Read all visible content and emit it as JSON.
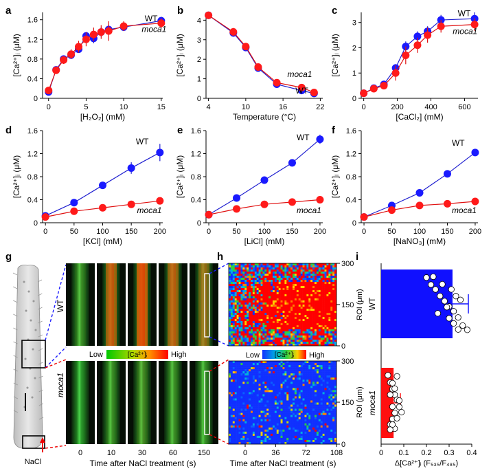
{
  "colors": {
    "wt": "#1a1aff",
    "moca1": "#ff1a1a",
    "line_wt": "#2020d0",
    "line_moca1": "#e01010",
    "bar_wt": "#1010ff",
    "bar_moca1": "#ff1010"
  },
  "chart_data": [
    {
      "panel": "a",
      "type": "scatter",
      "xlabel": "[H₂O₂] (mM)",
      "ylabel": "[Ca²⁺]ᵢ (μM)",
      "xlim": [
        -0.8,
        15.2
      ],
      "ylim": [
        0,
        1.75
      ],
      "xticks": [
        0,
        5,
        10,
        15
      ],
      "yticks": [
        0,
        0.4,
        0.8,
        1.2,
        1.6
      ],
      "ytick_labels": [
        "0",
        "0.4",
        "0.8",
        "1.2",
        "1.6"
      ],
      "annotations": [
        {
          "text": "WT",
          "x": 12.8,
          "y": 1.57
        },
        {
          "text": "moca1",
          "x": 12.4,
          "y": 1.35,
          "italic": true
        }
      ],
      "series": [
        {
          "name": "WT",
          "color": "wt",
          "x": [
            0,
            1,
            2,
            3,
            4,
            5,
            6,
            7,
            8,
            10,
            15
          ],
          "y": [
            0.13,
            0.58,
            0.8,
            0.88,
            1.0,
            1.27,
            1.22,
            1.35,
            1.4,
            1.45,
            1.58
          ],
          "err": [
            0.05,
            0.05,
            0.06,
            0.06,
            0.06,
            0.08,
            0.1,
            0.1,
            0.1,
            0.06,
            0.08
          ]
        },
        {
          "name": "moca1",
          "color": "moca1",
          "x": [
            0,
            1,
            2,
            3,
            4,
            5,
            6,
            7,
            8,
            10,
            15
          ],
          "y": [
            0.16,
            0.57,
            0.78,
            0.9,
            1.05,
            1.2,
            1.3,
            1.35,
            1.37,
            1.47,
            1.53
          ],
          "err": [
            0.05,
            0.05,
            0.08,
            0.1,
            0.12,
            0.14,
            0.14,
            0.14,
            0.2,
            0.1,
            0.1
          ]
        }
      ]
    },
    {
      "panel": "b",
      "type": "scatter",
      "xlabel": "Temperature (°C)",
      "ylabel": "[Ca²⁺]ᵢ (μM)",
      "xlim": [
        3.6,
        22.4
      ],
      "ylim": [
        0,
        4.4
      ],
      "xticks": [
        4,
        10,
        16,
        22
      ],
      "yticks": [
        0,
        1,
        2,
        3,
        4
      ],
      "ytick_labels": [
        "0",
        "1",
        "2",
        "3",
        "4"
      ],
      "annotations": [
        {
          "text": "moca1",
          "x": 16.7,
          "y": 1.1,
          "italic": true
        },
        {
          "text": "WT",
          "x": 18.0,
          "y": 0.25
        }
      ],
      "series": [
        {
          "name": "WT",
          "color": "wt",
          "x": [
            4,
            8,
            10,
            12,
            15,
            19,
            21
          ],
          "y": [
            4.25,
            3.35,
            2.6,
            1.55,
            0.72,
            0.4,
            0.25
          ],
          "err": [
            0.15,
            0.2,
            0.15,
            0.12,
            0.1,
            0.08,
            0.08
          ]
        },
        {
          "name": "moca1",
          "color": "moca1",
          "x": [
            4,
            8,
            10,
            12,
            15,
            19,
            21
          ],
          "y": [
            4.25,
            3.4,
            2.65,
            1.6,
            0.8,
            0.55,
            0.3
          ],
          "err": [
            0.15,
            0.2,
            0.15,
            0.12,
            0.1,
            0.08,
            0.08
          ]
        }
      ]
    },
    {
      "panel": "c",
      "type": "scatter",
      "xlabel": "[CaCl₂] (mM)",
      "ylabel": "[Ca²⁺]ᵢ (μM)",
      "xlim": [
        -15,
        680
      ],
      "ylim": [
        0,
        3.4
      ],
      "xticks": [
        0,
        200,
        400,
        600
      ],
      "yticks": [
        0,
        1,
        2,
        3
      ],
      "ytick_labels": [
        "0",
        "1",
        "2",
        "3"
      ],
      "annotations": [
        {
          "text": "WT",
          "x": 560,
          "y": 3.25
        },
        {
          "text": "moca1",
          "x": 530,
          "y": 2.55,
          "italic": true
        }
      ],
      "series": [
        {
          "name": "WT",
          "color": "wt",
          "x": [
            0,
            60,
            120,
            190,
            250,
            320,
            380,
            460,
            660
          ],
          "y": [
            0.2,
            0.4,
            0.55,
            1.2,
            2.05,
            2.45,
            2.65,
            3.1,
            3.15
          ],
          "err": [
            0.05,
            0.08,
            0.1,
            0.15,
            0.2,
            0.2,
            0.2,
            0.2,
            0.25
          ]
        },
        {
          "name": "moca1",
          "color": "moca1",
          "x": [
            0,
            60,
            120,
            190,
            250,
            320,
            380,
            460,
            660
          ],
          "y": [
            0.2,
            0.38,
            0.5,
            1.0,
            1.7,
            2.1,
            2.5,
            2.85,
            2.92
          ],
          "err": [
            0.05,
            0.08,
            0.1,
            0.3,
            0.35,
            0.3,
            0.3,
            0.25,
            0.25
          ]
        }
      ]
    },
    {
      "panel": "d",
      "type": "scatter",
      "xlabel": "[KCl] (mM)",
      "ylabel": "[Ca²⁺]ᵢ (μM)",
      "xlim": [
        -5,
        205
      ],
      "ylim": [
        0,
        1.6
      ],
      "xticks": [
        0,
        50,
        100,
        150,
        200
      ],
      "yticks": [
        0,
        0.4,
        0.8,
        1.2,
        1.6
      ],
      "ytick_labels": [
        "0",
        "0.4",
        "0.8",
        "1.2",
        "1.6"
      ],
      "annotations": [
        {
          "text": "WT",
          "x": 158,
          "y": 1.36
        },
        {
          "text": "moca1",
          "x": 160,
          "y": 0.17,
          "italic": true
        }
      ],
      "series": [
        {
          "name": "WT",
          "color": "wt",
          "x": [
            0,
            50,
            100,
            150,
            200
          ],
          "y": [
            0.12,
            0.35,
            0.65,
            0.95,
            1.22
          ],
          "err": [
            0.03,
            0.04,
            0.04,
            0.1,
            0.15
          ]
        },
        {
          "name": "moca1",
          "color": "moca1",
          "x": [
            0,
            50,
            100,
            150,
            200
          ],
          "y": [
            0.1,
            0.2,
            0.26,
            0.32,
            0.38
          ],
          "err": [
            0.03,
            0.03,
            0.03,
            0.04,
            0.06
          ]
        }
      ]
    },
    {
      "panel": "e",
      "type": "scatter",
      "xlabel": "[LiCl] (mM)",
      "ylabel": "[Ca²⁺]ᵢ (μM)",
      "xlim": [
        -5,
        205
      ],
      "ylim": [
        0,
        1.6
      ],
      "xticks": [
        0,
        50,
        100,
        150,
        200
      ],
      "yticks": [
        0,
        0.4,
        0.8,
        1.2,
        1.6
      ],
      "ytick_labels": [
        "0",
        "0.4",
        "0.8",
        "1.2",
        "1.6"
      ],
      "annotations": [
        {
          "text": "WT",
          "x": 158,
          "y": 1.43
        },
        {
          "text": "moca1",
          "x": 158,
          "y": 0.17,
          "italic": true
        }
      ],
      "series": [
        {
          "name": "WT",
          "color": "wt",
          "x": [
            0,
            50,
            100,
            150,
            200
          ],
          "y": [
            0.14,
            0.43,
            0.74,
            1.04,
            1.45
          ],
          "err": [
            0.03,
            0.04,
            0.05,
            0.06,
            0.08
          ]
        },
        {
          "name": "moca1",
          "color": "moca1",
          "x": [
            0,
            50,
            100,
            150,
            200
          ],
          "y": [
            0.14,
            0.24,
            0.32,
            0.36,
            0.4
          ],
          "err": [
            0.03,
            0.03,
            0.03,
            0.04,
            0.04
          ]
        }
      ]
    },
    {
      "panel": "f",
      "type": "scatter",
      "xlabel": "[NaNO₃] (mM)",
      "ylabel": "[Ca²⁺]ᵢ (μM)",
      "xlim": [
        -5,
        205
      ],
      "ylim": [
        0,
        1.6
      ],
      "xticks": [
        0,
        50,
        100,
        150,
        200
      ],
      "yticks": [
        0,
        0.4,
        0.8,
        1.2,
        1.6
      ],
      "ytick_labels": [
        "0",
        "0.4",
        "0.8",
        "1.2",
        "1.6"
      ],
      "annotations": [
        {
          "text": "WT",
          "x": 158,
          "y": 1.34
        },
        {
          "text": "moca1",
          "x": 158,
          "y": 0.17,
          "italic": true
        }
      ],
      "series": [
        {
          "name": "WT",
          "color": "wt",
          "x": [
            0,
            50,
            100,
            150,
            200
          ],
          "y": [
            0.1,
            0.3,
            0.52,
            0.85,
            1.22
          ],
          "err": [
            0.03,
            0.04,
            0.04,
            0.05,
            0.06
          ]
        },
        {
          "name": "moca1",
          "color": "moca1",
          "x": [
            0,
            50,
            100,
            150,
            200
          ],
          "y": [
            0.1,
            0.22,
            0.3,
            0.33,
            0.37
          ],
          "err": [
            0.03,
            0.03,
            0.03,
            0.03,
            0.04
          ]
        }
      ]
    },
    {
      "panel": "i",
      "type": "bar",
      "orientation": "horizontal",
      "xlabel": "Δ[Ca²⁺]ᵢ (F₅₃₅/F₄₈₅)",
      "xlim": [
        0,
        0.4
      ],
      "xticks": [
        0,
        0.1,
        0.2,
        0.3,
        0.4
      ],
      "xtick_labels": [
        "0",
        "0.1",
        "0.2",
        "0.3",
        "0.4"
      ],
      "categories": [
        "WT",
        "moca1"
      ],
      "category_italic": [
        false,
        true
      ],
      "values": [
        0.315,
        0.055
      ],
      "err": [
        0.07,
        0.03
      ],
      "points": [
        [
          0.2,
          0.22,
          0.24,
          0.26,
          0.28,
          0.3,
          0.32,
          0.34,
          0.36,
          0.38,
          0.23,
          0.27,
          0.31,
          0.33,
          0.35,
          0.29,
          0.25,
          0.3,
          0.32,
          0.34
        ],
        [
          0.03,
          0.04,
          0.05,
          0.06,
          0.07,
          0.08,
          0.09,
          0.05,
          0.04,
          0.06,
          0.07,
          0.05,
          0.06,
          0.04,
          0.08,
          0.05,
          0.06,
          0.07,
          0.05,
          0.04
        ]
      ]
    }
  ],
  "panel_g": {
    "label": "g",
    "genotypes": [
      {
        "text": "WT",
        "italic": false
      },
      {
        "text": "moca1",
        "italic": true
      }
    ],
    "times": [
      "0",
      "10",
      "30",
      "60",
      "150"
    ],
    "xlabel": "Time after NaCl treatment (s)",
    "colorbar": {
      "low": "Low",
      "high": "High",
      "label": "[Ca²⁺]ᵢ"
    },
    "nacl_label": "NaCl",
    "wt_redness": [
      0.05,
      0.55,
      0.7,
      0.5,
      0.35
    ],
    "moca1_redness": [
      0.0,
      0.05,
      0.08,
      0.05,
      0.04
    ]
  },
  "panel_h": {
    "label": "h",
    "xlabel": "Time after NaCl treatment (s)",
    "ylabel": "ROI (μm)",
    "xticks": [
      "0",
      "36",
      "72",
      "108"
    ],
    "yticks": [
      "0",
      "150",
      "300"
    ],
    "colorbar": {
      "low": "Low",
      "high": "High",
      "label": "[Ca²⁺]ᵢ"
    }
  }
}
